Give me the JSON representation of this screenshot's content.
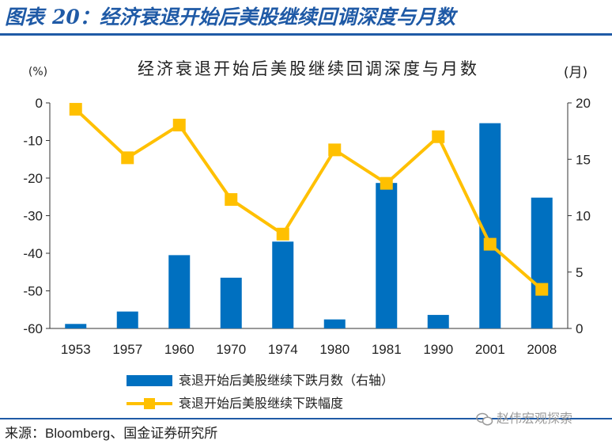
{
  "figure": {
    "label": "图表",
    "number": "20：",
    "title": "经济衰退开始后美股继续回调深度与月数"
  },
  "chart_data": {
    "type": "bar+line",
    "title": "经济衰退开始后美股继续回调深度与月数",
    "categories": [
      "1953",
      "1957",
      "1960",
      "1970",
      "1974",
      "1980",
      "1981",
      "1990",
      "2001",
      "2008"
    ],
    "series": [
      {
        "name": "衰退开始后美股继续下跌月数（右轴）",
        "kind": "bar",
        "axis": "right",
        "color": "#0070c0",
        "values": [
          0.4,
          1.5,
          6.5,
          4.5,
          7.7,
          0.8,
          12.9,
          1.2,
          18.2,
          11.6
        ]
      },
      {
        "name": "衰退开始后美股继续下跌幅度",
        "kind": "line",
        "axis": "left",
        "color": "#ffc000",
        "values": [
          -1.7,
          -14.6,
          -5.9,
          -25.7,
          -34.9,
          -12.5,
          -21.4,
          -9.0,
          -37.6,
          -49.6
        ]
      }
    ],
    "left_axis": {
      "unit": "(%)",
      "ylim": [
        -60,
        0
      ],
      "ticks": [
        "0",
        "-10",
        "-20",
        "-30",
        "-40",
        "-50",
        "-60"
      ]
    },
    "right_axis": {
      "unit": "(月)",
      "ylim": [
        0,
        20
      ],
      "ticks": [
        "20",
        "15",
        "10",
        "5",
        "0"
      ]
    },
    "legend": "bottom"
  },
  "source": "来源：Bloomberg、国金证券研究所",
  "watermark": "赵伟宏观探索",
  "colors": {
    "accent": "#1f5aa6",
    "bar": "#0070c0",
    "line": "#ffc000"
  }
}
